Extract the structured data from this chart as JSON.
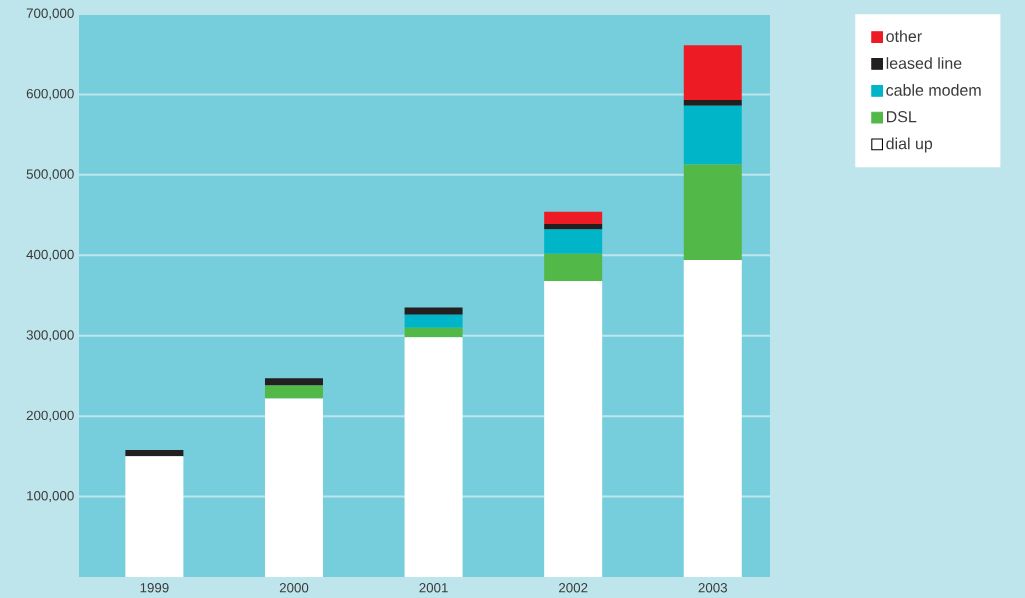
{
  "chart_data": {
    "type": "bar",
    "stacked": true,
    "categories": [
      "1999",
      "2000",
      "2001",
      "2002",
      "2003"
    ],
    "series": [
      {
        "name": "dial up",
        "color": "#ffffff",
        "values": [
          150000,
          222000,
          298000,
          368000,
          394000
        ]
      },
      {
        "name": "DSL",
        "color": "#52b848",
        "values": [
          null,
          16000,
          12000,
          34000,
          119000
        ]
      },
      {
        "name": "cable modem",
        "color": "#00b5c8",
        "values": [
          null,
          null,
          16000,
          30000,
          73000
        ]
      },
      {
        "name": "leased line",
        "color": "#231f20",
        "values": [
          8000,
          9000,
          9000,
          7000,
          7000
        ]
      },
      {
        "name": "other",
        "color": "#ed1c24",
        "values": [
          null,
          null,
          null,
          15000,
          68000
        ]
      }
    ],
    "ylim": [
      0,
      700000
    ],
    "yticks": [
      {
        "value": 100000,
        "label": "100,000"
      },
      {
        "value": 200000,
        "label": "200,000"
      },
      {
        "value": 300000,
        "label": "300,000"
      },
      {
        "value": 400000,
        "label": "400,000"
      },
      {
        "value": 500000,
        "label": "500,000"
      },
      {
        "value": 600000,
        "label": "600,000"
      },
      {
        "value": 700000,
        "label": "700,000"
      }
    ],
    "grid": "y",
    "legend": "top right"
  }
}
